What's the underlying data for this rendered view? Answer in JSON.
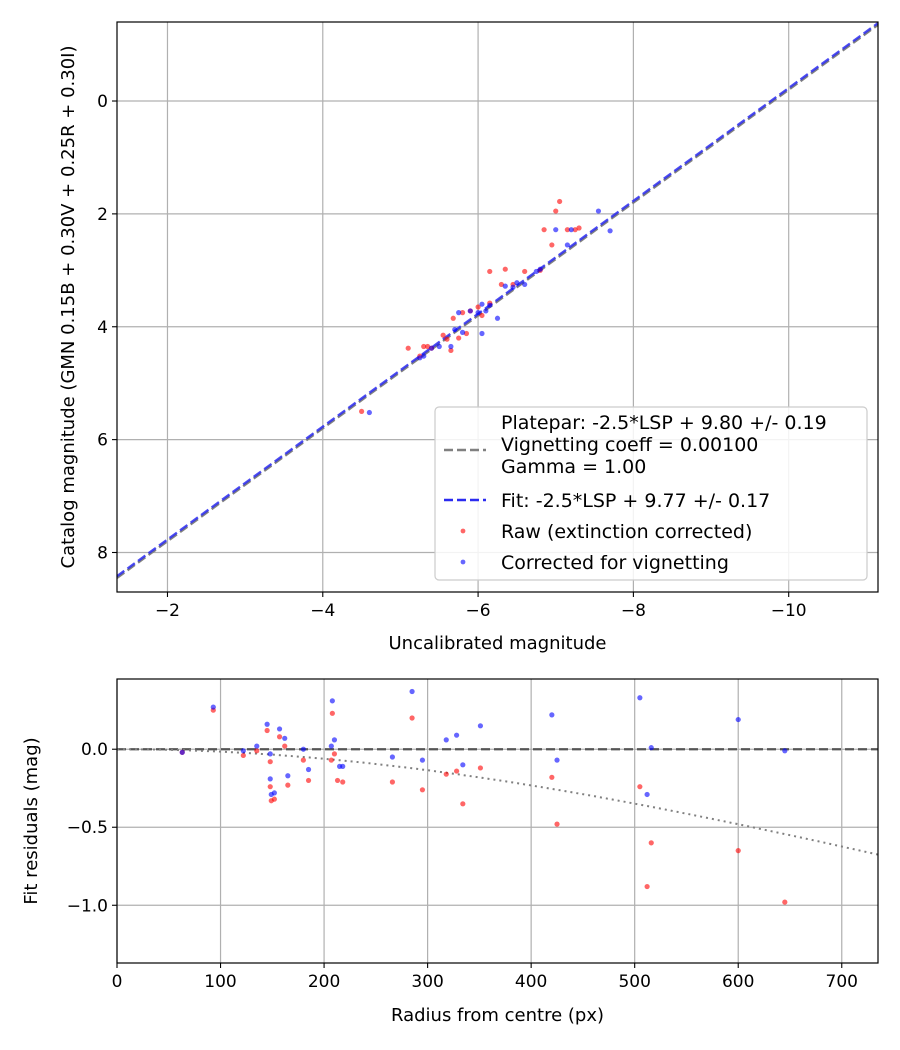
{
  "chart_data": [
    {
      "type": "scatter",
      "xlabel": "Uncalibrated magnitude",
      "ylabel": "Catalog magnitude (GMN 0.15B + 0.30V + 0.25R + 0.30I)",
      "xlim": [
        -1.35,
        -11.15
      ],
      "ylim": [
        8.7,
        -1.4
      ],
      "x_inverted": true,
      "y_inverted": true,
      "xticks": [
        -2,
        -4,
        -6,
        -8,
        -10
      ],
      "xtick_labels": [
        "−2",
        "−4",
        "−6",
        "−8",
        "−10"
      ],
      "yticks": [
        0,
        2,
        4,
        6,
        8
      ],
      "ytick_labels": [
        "0",
        "2",
        "4",
        "6",
        "8"
      ],
      "grid": true,
      "legend_position": "lower-right",
      "lines": [
        {
          "name": "Platepar: -2.5*LSP + 9.80 +/- 0.19\nVignetting coeff = 0.00100\nGamma = 1.00",
          "style": "dashed",
          "color": "#808080",
          "slope": 1,
          "intercept": 9.8
        },
        {
          "name": "Fit: -2.5*LSP + 9.77 +/- 0.17",
          "style": "dashed",
          "color": "#2b2bf0",
          "slope": 1,
          "intercept": 9.77
        }
      ],
      "series": [
        {
          "name": "Raw (extinction corrected)",
          "color": "#ff0000",
          "points": [
            [
              -4.5,
              5.5
            ],
            [
              -5.1,
              4.38
            ],
            [
              -5.25,
              4.52
            ],
            [
              -5.3,
              4.35
            ],
            [
              -5.35,
              4.35
            ],
            [
              -5.4,
              4.38
            ],
            [
              -5.55,
              4.15
            ],
            [
              -5.6,
              4.22
            ],
            [
              -5.65,
              4.42
            ],
            [
              -5.68,
              3.85
            ],
            [
              -5.75,
              4.2
            ],
            [
              -5.8,
              3.75
            ],
            [
              -5.85,
              4.12
            ],
            [
              -5.9,
              3.72
            ],
            [
              -6.0,
              3.65
            ],
            [
              -6.05,
              3.8
            ],
            [
              -6.15,
              3.58
            ],
            [
              -6.15,
              3.02
            ],
            [
              -6.3,
              3.25
            ],
            [
              -6.35,
              2.98
            ],
            [
              -6.45,
              3.25
            ],
            [
              -6.6,
              3.02
            ],
            [
              -6.8,
              3.0
            ],
            [
              -6.85,
              2.28
            ],
            [
              -6.95,
              2.55
            ],
            [
              -7.0,
              1.95
            ],
            [
              -7.05,
              1.78
            ],
            [
              -7.15,
              2.28
            ],
            [
              -7.25,
              2.28
            ],
            [
              -7.3,
              2.25
            ]
          ]
        },
        {
          "name": "Corrected for vignetting",
          "color": "#0000ff",
          "points": [
            [
              -4.6,
              5.52
            ],
            [
              -5.25,
              4.55
            ],
            [
              -5.3,
              4.52
            ],
            [
              -5.4,
              4.38
            ],
            [
              -5.5,
              4.35
            ],
            [
              -5.65,
              4.35
            ],
            [
              -5.7,
              4.05
            ],
            [
              -5.75,
              3.75
            ],
            [
              -5.8,
              4.1
            ],
            [
              -5.9,
              3.72
            ],
            [
              -6.0,
              3.75
            ],
            [
              -6.05,
              3.6
            ],
            [
              -6.05,
              4.12
            ],
            [
              -6.1,
              3.72
            ],
            [
              -6.15,
              3.62
            ],
            [
              -6.25,
              3.85
            ],
            [
              -6.35,
              3.28
            ],
            [
              -6.45,
              3.3
            ],
            [
              -6.5,
              3.22
            ],
            [
              -6.6,
              3.25
            ],
            [
              -6.75,
              3.02
            ],
            [
              -6.8,
              2.98
            ],
            [
              -7.0,
              2.28
            ],
            [
              -7.15,
              2.55
            ],
            [
              -7.2,
              2.28
            ],
            [
              -7.55,
              1.95
            ],
            [
              -7.7,
              2.3
            ]
          ]
        }
      ]
    },
    {
      "type": "scatter",
      "xlabel": "Radius from centre (px)",
      "ylabel": "Fit residuals (mag)",
      "xlim": [
        0,
        735
      ],
      "ylim": [
        -1.37,
        0.45
      ],
      "xticks": [
        0,
        100,
        200,
        300,
        400,
        500,
        600,
        700
      ],
      "xtick_labels": [
        "0",
        "100",
        "200",
        "300",
        "400",
        "500",
        "600",
        "700"
      ],
      "yticks": [
        0.0,
        -0.5,
        -1.0
      ],
      "ytick_labels": [
        "0.0",
        "−0.5",
        "−1.0"
      ],
      "grid": true,
      "reference_lines": [
        {
          "style": "dashed",
          "color": "#555555",
          "y": 0.0
        },
        {
          "style": "dotted",
          "color": "#808080",
          "curve": "vignetting",
          "coeff": 0.001
        }
      ],
      "series": [
        {
          "name": "Raw (extinction corrected)",
          "color": "#ff0000",
          "points": [
            [
              63,
              -0.02
            ],
            [
              93,
              0.25
            ],
            [
              122,
              -0.04
            ],
            [
              135,
              -0.01
            ],
            [
              145,
              0.12
            ],
            [
              148,
              -0.08
            ],
            [
              148,
              -0.24
            ],
            [
              149,
              -0.33
            ],
            [
              152,
              -0.32
            ],
            [
              157,
              0.08
            ],
            [
              162,
              0.02
            ],
            [
              165,
              -0.23
            ],
            [
              180,
              -0.07
            ],
            [
              185,
              -0.2
            ],
            [
              207,
              -0.07
            ],
            [
              208,
              0.23
            ],
            [
              210,
              -0.03
            ],
            [
              213,
              -0.2
            ],
            [
              218,
              -0.21
            ],
            [
              266,
              -0.21
            ],
            [
              285,
              0.2
            ],
            [
              295,
              -0.26
            ],
            [
              318,
              -0.16
            ],
            [
              328,
              -0.14
            ],
            [
              334,
              -0.35
            ],
            [
              351,
              -0.12
            ],
            [
              420,
              -0.18
            ],
            [
              425,
              -0.48
            ],
            [
              505,
              -0.24
            ],
            [
              512,
              -0.88
            ],
            [
              516,
              -0.6
            ],
            [
              600,
              -0.65
            ],
            [
              645,
              -0.98
            ]
          ]
        },
        {
          "name": "Corrected for vignetting",
          "color": "#0000ff",
          "points": [
            [
              63,
              -0.02
            ],
            [
              93,
              0.27
            ],
            [
              122,
              -0.01
            ],
            [
              135,
              0.02
            ],
            [
              145,
              0.16
            ],
            [
              148,
              -0.03
            ],
            [
              148,
              -0.19
            ],
            [
              149,
              -0.29
            ],
            [
              152,
              -0.28
            ],
            [
              157,
              0.13
            ],
            [
              162,
              0.07
            ],
            [
              165,
              -0.17
            ],
            [
              180,
              0.0
            ],
            [
              185,
              -0.13
            ],
            [
              207,
              0.02
            ],
            [
              208,
              0.31
            ],
            [
              210,
              0.06
            ],
            [
              215,
              -0.11
            ],
            [
              218,
              -0.11
            ],
            [
              266,
              -0.05
            ],
            [
              285,
              0.37
            ],
            [
              295,
              -0.07
            ],
            [
              318,
              0.06
            ],
            [
              328,
              0.09
            ],
            [
              334,
              -0.1
            ],
            [
              351,
              0.15
            ],
            [
              420,
              0.22
            ],
            [
              425,
              -0.07
            ],
            [
              505,
              0.33
            ],
            [
              512,
              -0.29
            ],
            [
              516,
              0.01
            ],
            [
              600,
              0.19
            ],
            [
              645,
              -0.01
            ]
          ]
        }
      ]
    }
  ],
  "colors": {
    "raw": "#ff0000",
    "corrected": "#0000ff",
    "platepar": "#808080",
    "fit": "#2b2bf0"
  }
}
